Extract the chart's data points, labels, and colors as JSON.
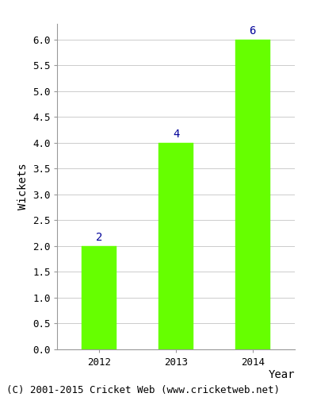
{
  "categories": [
    "2012",
    "2013",
    "2014"
  ],
  "values": [
    2,
    4,
    6
  ],
  "bar_color": "#66ff00",
  "bar_edge_color": "#66ff00",
  "label_color": "#000099",
  "xlabel": "Year",
  "ylabel": "Wickets",
  "ylim": [
    0,
    6.3
  ],
  "yticks": [
    0.0,
    0.5,
    1.0,
    1.5,
    2.0,
    2.5,
    3.0,
    3.5,
    4.0,
    4.5,
    5.0,
    5.5,
    6.0
  ],
  "footer": "(C) 2001-2015 Cricket Web (www.cricketweb.net)",
  "footer_fontsize": 9,
  "axis_label_fontsize": 10,
  "tick_fontsize": 9,
  "value_label_fontsize": 10,
  "bar_width": 0.45,
  "background_color": "#ffffff",
  "grid_color": "#cccccc"
}
